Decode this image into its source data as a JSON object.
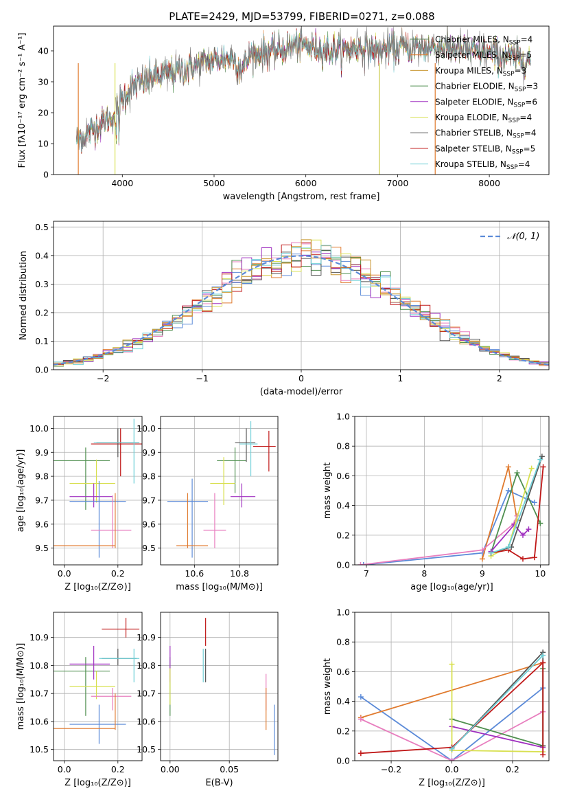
{
  "figure": {
    "title": "PLATE=2429, MJD=53799, FIBERID=0271, z=0.088"
  },
  "legend_models": [
    {
      "name": "Chabrier MILES",
      "nssp": "4",
      "color": "#5f8a5f"
    },
    {
      "name": "Salpeter MILES",
      "nssp": "5",
      "color": "#e07a2e"
    },
    {
      "name": "Kroupa MILES",
      "nssp": "3",
      "color": "#c8962e"
    },
    {
      "name": "Chabrier ELODIE",
      "nssp": "3",
      "color": "#4f8f4f"
    },
    {
      "name": "Salpeter ELODIE",
      "nssp": "6",
      "color": "#a030c0"
    },
    {
      "name": "Kroupa ELODIE",
      "nssp": "4",
      "color": "#d8e050"
    },
    {
      "name": "Chabrier STELIB",
      "nssp": "4",
      "color": "#555555"
    },
    {
      "name": "Salpeter STELIB",
      "nssp": "5",
      "color": "#c01818"
    },
    {
      "name": "Kroupa STELIB",
      "nssp": "4",
      "color": "#70d0d8"
    }
  ],
  "chart_data": [
    {
      "id": "spectrum",
      "type": "line",
      "xlabel": "wavelength [Angstrom, rest frame]",
      "ylabel": "Flux [fλ10⁻¹⁷ erg cm⁻² s⁻¹ A⁻¹]",
      "xlim": [
        3250,
        8650
      ],
      "ylim": [
        0,
        48
      ],
      "xticks": [
        "4000",
        "5000",
        "6000",
        "7000",
        "8000"
      ],
      "yticks": [
        "0",
        "10",
        "20",
        "30",
        "40"
      ],
      "continuum": [
        [
          3500,
          11
        ],
        [
          3650,
          14
        ],
        [
          3800,
          17
        ],
        [
          3900,
          19
        ],
        [
          3960,
          22
        ],
        [
          4000,
          25
        ],
        [
          4100,
          28
        ],
        [
          4300,
          31
        ],
        [
          4500,
          33
        ],
        [
          4700,
          34
        ],
        [
          4860,
          36
        ],
        [
          5000,
          37
        ],
        [
          5200,
          38
        ],
        [
          5300,
          34
        ],
        [
          5400,
          39
        ],
        [
          5700,
          40
        ],
        [
          5900,
          42
        ],
        [
          6100,
          41
        ],
        [
          6300,
          40
        ],
        [
          6560,
          41
        ],
        [
          6800,
          40
        ],
        [
          7000,
          41
        ],
        [
          7300,
          41
        ],
        [
          7600,
          41
        ],
        [
          7800,
          40
        ],
        [
          8000,
          39
        ],
        [
          8200,
          38
        ],
        [
          8450,
          37
        ]
      ],
      "range_end": [
        8450,
        7420,
        8450,
        8450,
        8450,
        8450,
        8450,
        8450,
        8450
      ]
    },
    {
      "id": "residuals",
      "type": "step",
      "xlabel": "(data-model)/error",
      "ylabel": "Normed distribution",
      "xlim": [
        -2.5,
        2.5
      ],
      "ylim": [
        0,
        0.52
      ],
      "xticks": [
        "−2",
        "−1",
        "0",
        "1",
        "2"
      ],
      "yticks": [
        "0.0",
        "0.1",
        "0.2",
        "0.3",
        "0.4",
        "0.5"
      ],
      "bin_width": 0.1,
      "legend": "𝒩(0, 1)",
      "normal_color": "#5b8ad8"
    },
    {
      "id": "age-vs-Z",
      "type": "errorbar",
      "xlabel": "Z [log₁₀(Z/Z⊙)]",
      "ylabel": "age  [log₁₀(age/yr)]",
      "xlim": [
        -0.04,
        0.29
      ],
      "ylim": [
        9.43,
        10.05
      ],
      "xticks": [
        "0.0",
        "0.2"
      ],
      "yticks": [
        "9.5",
        "9.6",
        "9.7",
        "9.8",
        "9.9",
        "10.0"
      ],
      "points": [
        {
          "x": 0.08,
          "y": 9.865,
          "xlo": -0.04,
          "xhi": 0.17,
          "ylo": 9.66,
          "yhi": 9.92,
          "color": "#4f8f4f"
        },
        {
          "x": 0.21,
          "y": 9.935,
          "xlo": 0.1,
          "xhi": 0.29,
          "ylo": 9.8,
          "yhi": 10.0,
          "color": "#c01818"
        },
        {
          "x": 0.2,
          "y": 9.94,
          "xlo": 0.12,
          "xhi": 0.28,
          "ylo": 9.88,
          "yhi": 10.0,
          "color": "#555555"
        },
        {
          "x": 0.26,
          "y": 9.94,
          "xlo": 0.11,
          "xhi": 0.28,
          "ylo": 9.77,
          "yhi": 10.04,
          "color": "#70d0d8"
        },
        {
          "x": 0.12,
          "y": 9.77,
          "xlo": 0.02,
          "xhi": 0.19,
          "ylo": 9.69,
          "yhi": 9.87,
          "color": "#d8e050"
        },
        {
          "x": 0.11,
          "y": 9.715,
          "xlo": 0.02,
          "xhi": 0.18,
          "ylo": 9.67,
          "yhi": 9.77,
          "color": "#a030c0"
        },
        {
          "x": 0.13,
          "y": 9.695,
          "xlo": 0.02,
          "xhi": 0.23,
          "ylo": 9.46,
          "yhi": 9.78,
          "color": "#5b8ad8"
        },
        {
          "x": 0.18,
          "y": 9.575,
          "xlo": 0.1,
          "xhi": 0.25,
          "ylo": 9.5,
          "yhi": 9.72,
          "color": "#e87fbf"
        },
        {
          "x": 0.19,
          "y": 9.51,
          "xlo": -0.04,
          "xhi": 0.19,
          "ylo": 9.5,
          "yhi": 9.73,
          "color": "#e07a2e"
        }
      ]
    },
    {
      "id": "age-vs-mass",
      "type": "errorbar",
      "xlabel": "mass [log₁₀(M/M⊙)]",
      "ylabel": "",
      "xlim": [
        10.45,
        10.97
      ],
      "ylim": [
        9.43,
        10.05
      ],
      "xticks": [
        "10.6",
        "10.8"
      ],
      "yticks": [
        "9.5",
        "9.6",
        "9.7",
        "9.8",
        "9.9",
        "10.0"
      ],
      "points": [
        {
          "x": 10.78,
          "y": 9.865,
          "xlo": 10.7,
          "xhi": 10.83,
          "ylo": 9.73,
          "yhi": 9.92,
          "color": "#4f8f4f"
        },
        {
          "x": 10.93,
          "y": 9.925,
          "xlo": 10.86,
          "xhi": 10.96,
          "ylo": 9.82,
          "yhi": 9.99,
          "color": "#c01818"
        },
        {
          "x": 10.83,
          "y": 9.94,
          "xlo": 10.78,
          "xhi": 10.87,
          "ylo": 9.86,
          "yhi": 10.0,
          "color": "#555555"
        },
        {
          "x": 10.85,
          "y": 9.935,
          "xlo": 10.8,
          "xhi": 10.88,
          "ylo": 9.8,
          "yhi": 10.03,
          "color": "#70d0d8"
        },
        {
          "x": 10.73,
          "y": 9.77,
          "xlo": 10.67,
          "xhi": 10.78,
          "ylo": 9.68,
          "yhi": 9.88,
          "color": "#d8e050"
        },
        {
          "x": 10.81,
          "y": 9.715,
          "xlo": 10.76,
          "xhi": 10.87,
          "ylo": 9.67,
          "yhi": 9.77,
          "color": "#a030c0"
        },
        {
          "x": 10.59,
          "y": 9.695,
          "xlo": 10.48,
          "xhi": 10.66,
          "ylo": 9.46,
          "yhi": 9.79,
          "color": "#5b8ad8"
        },
        {
          "x": 10.69,
          "y": 9.575,
          "xlo": 10.64,
          "xhi": 10.74,
          "ylo": 9.5,
          "yhi": 9.73,
          "color": "#e87fbf"
        },
        {
          "x": 10.57,
          "y": 9.51,
          "xlo": 10.52,
          "xhi": 10.66,
          "ylo": 9.5,
          "yhi": 9.73,
          "color": "#e07a2e"
        }
      ]
    },
    {
      "id": "weight-vs-age",
      "type": "line",
      "xlabel": "age  [log₁₀(age/yr)]",
      "ylabel": "mass weight",
      "xlim": [
        6.8,
        10.15
      ],
      "ylim": [
        0,
        1
      ],
      "xticks": [
        "7",
        "8",
        "9",
        "10"
      ],
      "yticks": [
        "0.0",
        "0.2",
        "0.4",
        "0.6",
        "0.8",
        "1.0"
      ],
      "series": [
        {
          "color": "#5b8ad8",
          "points": [
            [
              6.95,
              0.0
            ],
            [
              9.0,
              0.08
            ],
            [
              9.45,
              0.5
            ],
            [
              9.9,
              0.42
            ]
          ]
        },
        {
          "color": "#e07a2e",
          "points": [
            [
              9.0,
              0.04
            ],
            [
              9.45,
              0.66
            ],
            [
              9.6,
              0.3
            ]
          ]
        },
        {
          "color": "#e87fbf",
          "points": [
            [
              6.9,
              0.0
            ],
            [
              9.0,
              0.1
            ],
            [
              9.55,
              0.28
            ],
            [
              9.6,
              0.33
            ]
          ]
        },
        {
          "color": "#4f8f4f",
          "points": [
            [
              9.15,
              0.08
            ],
            [
              9.6,
              0.62
            ],
            [
              10.0,
              0.28
            ]
          ]
        },
        {
          "color": "#a030c0",
          "points": [
            [
              9.15,
              0.09
            ],
            [
              9.55,
              0.27
            ],
            [
              9.7,
              0.2
            ],
            [
              9.8,
              0.24
            ]
          ]
        },
        {
          "color": "#d8e050",
          "points": [
            [
              9.15,
              0.06
            ],
            [
              9.45,
              0.12
            ],
            [
              9.85,
              0.65
            ]
          ]
        },
        {
          "color": "#555555",
          "points": [
            [
              9.15,
              0.08
            ],
            [
              9.5,
              0.12
            ],
            [
              10.03,
              0.73
            ]
          ]
        },
        {
          "color": "#c01818",
          "points": [
            [
              9.15,
              0.08
            ],
            [
              9.45,
              0.1
            ],
            [
              9.7,
              0.04
            ],
            [
              9.9,
              0.05
            ],
            [
              10.05,
              0.66
            ]
          ]
        },
        {
          "color": "#70d0d8",
          "points": [
            [
              9.15,
              0.08
            ],
            [
              9.45,
              0.12
            ],
            [
              10.0,
              0.71
            ]
          ]
        }
      ]
    },
    {
      "id": "mass-vs-Z",
      "type": "errorbar",
      "xlabel": "Z [log₁₀(Z/Z⊙)]",
      "ylabel": "mass [log₁₀(M/M⊙)]",
      "xlim": [
        -0.04,
        0.29
      ],
      "ylim": [
        10.46,
        10.99
      ],
      "xticks": [
        "0.0",
        "0.2"
      ],
      "yticks": [
        "10.5",
        "10.6",
        "10.7",
        "10.8",
        "10.9"
      ],
      "points": [
        {
          "x": 0.08,
          "y": 10.78,
          "xlo": -0.04,
          "xhi": 0.17,
          "ylo": 10.62,
          "yhi": 10.83,
          "color": "#4f8f4f"
        },
        {
          "x": 0.23,
          "y": 10.93,
          "xlo": 0.14,
          "xhi": 0.28,
          "ylo": 10.9,
          "yhi": 10.97,
          "color": "#c01818"
        },
        {
          "x": 0.2,
          "y": 10.825,
          "xlo": 0.14,
          "xhi": 0.27,
          "ylo": 10.8,
          "yhi": 10.86,
          "color": "#555555"
        },
        {
          "x": 0.26,
          "y": 10.825,
          "xlo": 0.13,
          "xhi": 0.28,
          "ylo": 10.74,
          "yhi": 10.86,
          "color": "#70d0d8"
        },
        {
          "x": 0.12,
          "y": 10.725,
          "xlo": 0.02,
          "xhi": 0.19,
          "ylo": 10.68,
          "yhi": 10.78,
          "color": "#d8e050"
        },
        {
          "x": 0.11,
          "y": 10.805,
          "xlo": 0.02,
          "xhi": 0.17,
          "ylo": 10.75,
          "yhi": 10.87,
          "color": "#a030c0"
        },
        {
          "x": 0.13,
          "y": 10.59,
          "xlo": 0.02,
          "xhi": 0.23,
          "ylo": 10.52,
          "yhi": 10.66,
          "color": "#5b8ad8"
        },
        {
          "x": 0.18,
          "y": 10.69,
          "xlo": 0.1,
          "xhi": 0.25,
          "ylo": 10.64,
          "yhi": 10.72,
          "color": "#e87fbf"
        },
        {
          "x": 0.19,
          "y": 10.575,
          "xlo": -0.04,
          "xhi": 0.19,
          "ylo": 10.57,
          "yhi": 10.7,
          "color": "#e07a2e"
        }
      ]
    },
    {
      "id": "mass-vs-ebv",
      "type": "errorbar",
      "xlabel": "E(B-V)",
      "ylabel": "",
      "xlim": [
        -0.008,
        0.091
      ],
      "ylim": [
        10.46,
        10.99
      ],
      "xticks": [
        "0.00",
        "0.05"
      ],
      "yticks": [
        "10.5",
        "10.6",
        "10.7",
        "10.8",
        "10.9"
      ],
      "points": [
        {
          "x": 0.0,
          "y": 10.78,
          "xlo": 0.0,
          "xhi": 0.0,
          "ylo": 10.62,
          "yhi": 10.83,
          "color": "#4f8f4f"
        },
        {
          "x": 0.0,
          "y": 10.805,
          "xlo": 0.0,
          "xhi": 0.0,
          "ylo": 10.74,
          "yhi": 10.87,
          "color": "#a030c0"
        },
        {
          "x": 0.0,
          "y": 10.725,
          "xlo": 0.0,
          "xhi": 0.0,
          "ylo": 10.66,
          "yhi": 10.79,
          "color": "#d8e050"
        },
        {
          "x": 0.028,
          "y": 10.8,
          "xlo": 0.028,
          "xhi": 0.028,
          "ylo": 10.74,
          "yhi": 10.86,
          "color": "#70d0d8"
        },
        {
          "x": 0.03,
          "y": 10.825,
          "xlo": 0.03,
          "xhi": 0.03,
          "ylo": 10.74,
          "yhi": 10.86,
          "color": "#555555"
        },
        {
          "x": 0.03,
          "y": 10.93,
          "xlo": 0.03,
          "xhi": 0.03,
          "ylo": 10.87,
          "yhi": 10.97,
          "color": "#c01818"
        },
        {
          "x": 0.081,
          "y": 10.69,
          "xlo": 0.081,
          "xhi": 0.081,
          "ylo": 10.64,
          "yhi": 10.77,
          "color": "#e87fbf"
        },
        {
          "x": 0.081,
          "y": 10.62,
          "xlo": 0.081,
          "xhi": 0.081,
          "ylo": 10.57,
          "yhi": 10.72,
          "color": "#e07a2e"
        },
        {
          "x": 0.088,
          "y": 10.57,
          "xlo": 0.088,
          "xhi": 0.088,
          "ylo": 10.48,
          "yhi": 10.66,
          "color": "#5b8ad8"
        }
      ]
    },
    {
      "id": "weight-vs-Z",
      "type": "line",
      "xlabel": "Z [log₁₀(Z/Z⊙)]",
      "ylabel": "mass weight",
      "xlim": [
        -0.32,
        0.32
      ],
      "ylim": [
        0,
        1
      ],
      "xticks": [
        "−0.2",
        "0.0",
        "0.2"
      ],
      "yticks": [
        "0.0",
        "0.2",
        "0.4",
        "0.6",
        "0.8",
        "1.0"
      ],
      "series": [
        {
          "color": "#5b8ad8",
          "points": [
            [
              -0.3,
              0.43
            ],
            [
              0.0,
              0.0
            ],
            [
              0.3,
              0.49
            ]
          ]
        },
        {
          "color": "#e07a2e",
          "points": [
            [
              -0.3,
              0.29
            ],
            [
              0.3,
              0.66
            ]
          ]
        },
        {
          "color": "#e87fbf",
          "points": [
            [
              -0.3,
              0.28
            ],
            [
              0.0,
              0.0
            ],
            [
              0.3,
              0.33
            ]
          ]
        },
        {
          "color": "#4f8f4f",
          "points": [
            [
              0.0,
              0.28
            ],
            [
              0.3,
              0.1
            ],
            [
              0.3,
              0.62
            ]
          ]
        },
        {
          "color": "#a030c0",
          "points": [
            [
              0.0,
              0.23
            ],
            [
              0.3,
              0.09
            ]
          ]
        },
        {
          "color": "#d8e050",
          "points": [
            [
              0.0,
              0.65
            ],
            [
              0.0,
              0.07
            ],
            [
              0.3,
              0.06
            ]
          ]
        },
        {
          "color": "#555555",
          "points": [
            [
              0.0,
              0.08
            ],
            [
              0.3,
              0.73
            ],
            [
              0.3,
              0.1
            ]
          ]
        },
        {
          "color": "#c01818",
          "points": [
            [
              -0.3,
              0.05
            ],
            [
              0.0,
              0.09
            ],
            [
              0.3,
              0.66
            ],
            [
              0.3,
              0.04
            ]
          ]
        },
        {
          "color": "#70d0d8",
          "points": [
            [
              0.0,
              0.08
            ],
            [
              0.3,
              0.71
            ]
          ]
        }
      ]
    }
  ]
}
